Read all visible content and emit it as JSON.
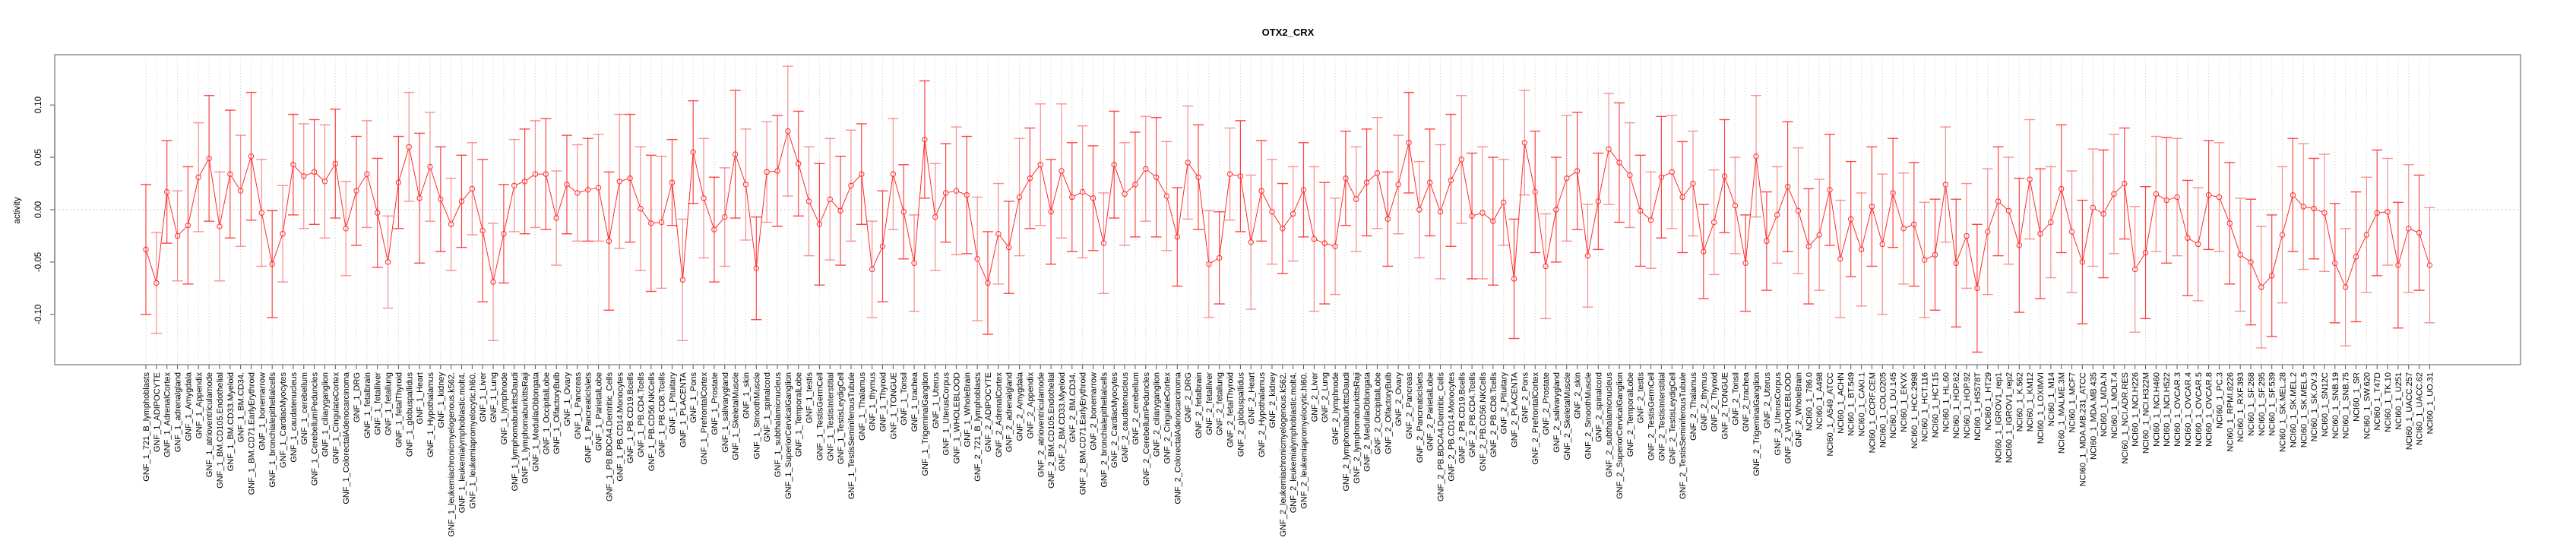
{
  "chart_data": {
    "type": "line",
    "title": "OTX2_CRX",
    "xlabel": "",
    "ylabel": "activity",
    "ylim": [
      -0.148,
      0.148
    ],
    "yticks": [
      -0.1,
      -0.05,
      0.0,
      0.05,
      0.1
    ],
    "ytick_labels": [
      "-0.10",
      "-0.05",
      "0.00",
      "0.05",
      "0.10"
    ],
    "grid": "vertical dotted at each sample; dotted reference line at 0",
    "legend": "none",
    "colors": {
      "series": "#ff2a2a",
      "error_bar": "#f77",
      "grid": "#cccccc",
      "frame": "#808080"
    },
    "categories": [
      "GNF_1_721_B_lymphoblasts",
      "GNF_1_ADIPOCYTE",
      "GNF_1_AdrenalCortex",
      "GNF_1_adrenalgland",
      "GNF_1_Amygdala",
      "GNF_1_Appendix",
      "GNF_1_atrioventricularnode",
      "GNF_1_BM.CD105.Endothelial",
      "GNF_1_BM.CD33.Myeloid",
      "GNF_1_BM.CD34.",
      "GNF_1_BM.CD71.EarlyErythroid",
      "GNF_1_bonemarrow",
      "GNF_1_bronchialepithelialcells",
      "GNF_1_CardiacMyocytes",
      "GNF_1_caudatenucleus",
      "GNF_1_cerebellum",
      "GNF_1_CerebellumPeduncles",
      "GNF_1_ciliaryganglion",
      "GNF_1_CingulateCortex",
      "GNF_1_ColorectalAdenocarcinoma",
      "GNF_1_DRG",
      "GNF_1_fetalbrain",
      "GNF_1_fetalliver",
      "GNF_1_fetallung",
      "GNF_1_fetalThyroid",
      "GNF_1_globuspallidus",
      "GNF_1_Heart",
      "GNF_1_Hypothalamus",
      "GNF_1_kidney",
      "GNF_1_leukemiachronicmyelogenous.k562.",
      "GNF_1_leukemialymphoblastic.molt4.",
      "GNF_1_leukemiapromyelocytic.hl60.",
      "GNF_1_Liver",
      "GNF_1_Lung",
      "GNF_1_lymphnode",
      "GNF_1_lymphomaburkittsDaudi",
      "GNF_1_lymphomaburkittsRaji",
      "GNF_1_MedullaOblongata",
      "GNF_1_OccipitalLobe",
      "GNF_1_OlfactoryBulb",
      "GNF_1_Ovary",
      "GNF_1_Pancreas",
      "GNF_1_PancreaticIslets",
      "GNF_1_ParietalLobe",
      "GNF_1_PB.BDCA4.Dentritic_Cells",
      "GNF_1_PB.CD14.Monocytes",
      "GNF_1_PB.CD19.Bcells",
      "GNF_1_PB.CD4.Tcells",
      "GNF_1_PB.CD56.NKCells",
      "GNF_1_PB.CD8.Tcells",
      "GNF_1_Pituitary",
      "GNF_1_PLACENTA",
      "GNF_1_Pons",
      "GNF_1_PrefrontalCortex",
      "GNF_1_Prostate",
      "GNF_1_salivarygland",
      "GNF_1_SkeletalMuscle",
      "GNF_1_skin",
      "GNF_1_SmoothMuscle",
      "GNF_1_spinalcord",
      "GNF_1_subthalamicnucleus",
      "GNF_1_SuperiorCervicalGanglion",
      "GNF_1_TemporalLobe",
      "GNF_1_testis",
      "GNF_1_TestisGermCell",
      "GNF_1_TestisInterstitial",
      "GNF_1_TestisLeydigCell",
      "GNF_1_TestisSeminiferousTubule",
      "GNF_1_Thalamus",
      "GNF_1_thymus",
      "GNF_1_Thyroid",
      "GNF_1_TONGUE",
      "GNF_1_Tonsil",
      "GNF_1_trachea",
      "GNF_1_TrigeminalGanglion",
      "GNF_1_Uterus",
      "GNF_1_UterusCorpus",
      "GNF_1_WHOLEBLOOD",
      "GNF_1_WholeBrain",
      "GNF_2_721_B_lymphoblasts",
      "GNF_2_ADIPOCYTE",
      "GNF_2_AdrenalCortex",
      "GNF_2_adrenalgland",
      "GNF_2_Amygdala",
      "GNF_2_Appendix",
      "GNF_2_atrioventricularnode",
      "GNF_2_BM.CD105.Endothelial",
      "GNF_2_BM.CD33.Myeloid",
      "GNF_2_BM.CD34.",
      "GNF_2_BM.CD71.EarlyErythroid",
      "GNF_2_bonemarrow",
      "GNF_2_bronchialepithelialcells",
      "GNF_2_CardiacMyocytes",
      "GNF_2_caudatenucleus",
      "GNF_2_cerebellum",
      "GNF_2_CerebellumPeduncles",
      "GNF_2_ciliaryganglion",
      "GNF_2_CingulateCortex",
      "GNF_2_ColorectalAdenocarcinoma",
      "GNF_2_DRG",
      "GNF_2_fetalbrain",
      "GNF_2_fetalliver",
      "GNF_2_fetallung",
      "GNF_2_fetalThyroid",
      "GNF_2_globuspallidus",
      "GNF_2_Heart",
      "GNF_2_Hypothalamus",
      "GNF_2_kidney",
      "GNF_2_leukemiachronicmyelogenous.k562.",
      "GNF_2_leukemialymphoblastic.molt4.",
      "GNF_2_leukemiapromyelocytic.hl60.",
      "GNF_2_Liver",
      "GNF_2_Lung",
      "GNF_2_lymphnode",
      "GNF_2_lymphomaburkittsDaudi",
      "GNF_2_lymphomaburkittsRaji",
      "GNF_2_MedullaOblongata",
      "GNF_2_OccipitalLobe",
      "GNF_2_OlfactoryBulb",
      "GNF_2_Ovary",
      "GNF_2_Pancreas",
      "GNF_2_PancreaticIslets",
      "GNF_2_ParietalLobe",
      "GNF_2_PB.BDCA4.Dentritic_Cells",
      "GNF_2_PB.CD14.Monocytes",
      "GNF_2_PB.CD19.Bcells",
      "GNF_2_PB.CD4.Tcells",
      "GNF_2_PB.CD56.NKCells",
      "GNF_2_PB.CD8.Tcells",
      "GNF_2_Pituitary",
      "GNF_2_PLACENTA",
      "GNF_2_Pons",
      "GNF_2_PrefrontalCortex",
      "GNF_2_Prostate",
      "GNF_2_salivarygland",
      "GNF_2_SkeletalMuscle",
      "GNF_2_skin",
      "GNF_2_SmoothMuscle",
      "GNF_2_spinalcord",
      "GNF_2_subthalamicnucleus",
      "GNF_2_SuperiorCervicalGanglion",
      "GNF_2_TemporalLobe",
      "GNF_2_testis",
      "GNF_2_TestisGermCell",
      "GNF_2_TestisInterstitial",
      "GNF_2_TestisLeydigCell",
      "GNF_2_TestisSeminiferousTubule",
      "GNF_2_Thalamus",
      "GNF_2_thymus",
      "GNF_2_Thyroid",
      "GNF_2_TONGUE",
      "GNF_2_Tonsil",
      "GNF_2_trachea",
      "GNF_2_TrigeminalGanglion",
      "GNF_2_Uterus",
      "GNF_2_UterusCorpus",
      "GNF_2_WHOLEBLOOD",
      "GNF_2_WholeBrain",
      "NCI60_1_786.0",
      "NCI60_1_A498",
      "NCI60_1_A549_ATCC",
      "NCI60_1_ACHN",
      "NCI60_1_BT.549",
      "NCI60_1_CAKI.1",
      "NCI60_1_CCRF.CEM",
      "NCI60_1_COLO205",
      "NCI60_1_DU.145",
      "NCI60_1_EKVX",
      "NCI60_1_HCC.2998",
      "NCI60_1_HCT.116",
      "NCI60_1_HCT.15",
      "NCI60_1_HL.60",
      "NCI60_1_HOP.62",
      "NCI60_1_HOP.92",
      "NCI60_1_HS578T",
      "NCI60_1_HT29",
      "NCI60_1_IGROV1_rep1",
      "NCI60_1_IGROV1_rep2",
      "NCI60_1_K.562",
      "NCI60_1_KM12",
      "NCI60_1_LOXIMVI",
      "NCI60_1_M14",
      "NCI60_1_MALME.3M",
      "NCI60_1_MCF7",
      "NCI60_1_MDA.MB.231_ATCC",
      "NCI60_1_MDA.MB.435",
      "NCI60_1_MDA.N",
      "NCI60_1_MOLT.4",
      "NCI60_1_NCI.ADR.RES",
      "NCI60_1_NCI.H226",
      "NCI60_1_NCI.H322M",
      "NCI60_1_NCI.H460",
      "NCI60_1_NCI.H522",
      "NCI60_1_OVCAR.3",
      "NCI60_1_OVCAR.4",
      "NCI60_1_OVCAR.5",
      "NCI60_1_OVCAR.8",
      "NCI60_1_PC.3",
      "NCI60_1_RPMI.8226",
      "NCI60_1_RXF.393",
      "NCI60_1_SF.268",
      "NCI60_1_SF.295",
      "NCI60_1_SF.539",
      "NCI60_1_SK.MEL.28",
      "NCI60_1_SK.MEL.2",
      "NCI60_1_SK.MEL.5",
      "NCI60_1_SK.OV.3",
      "NCI60_1_SN12C",
      "NCI60_1_SNB.19",
      "NCI60_1_SNB.75",
      "NCI60_1_SR",
      "NCI60_1_SW.620",
      "NCI60_1_T47D",
      "NCI60_1_TK.10",
      "NCI60_1_U251",
      "NCI60_1_UACC.257",
      "NCI60_1_UACC.62",
      "NCI60_1_UO.31"
    ],
    "series": [
      {
        "name": "activity",
        "values": [
          -0.038,
          -0.07,
          0.017,
          -0.025,
          -0.015,
          0.031,
          0.049,
          -0.016,
          0.034,
          0.018,
          0.051,
          -0.003,
          -0.052,
          -0.023,
          0.043,
          0.032,
          0.036,
          0.027,
          0.044,
          -0.018,
          0.018,
          0.034,
          -0.003,
          -0.05,
          0.026,
          0.06,
          0.011,
          0.041,
          0.01,
          -0.014,
          0.008,
          0.02,
          -0.02,
          -0.069,
          -0.023,
          0.023,
          0.027,
          0.034,
          0.034,
          -0.008,
          0.024,
          0.016,
          0.019,
          0.021,
          -0.03,
          0.027,
          0.03,
          0.001,
          -0.013,
          -0.012,
          0.026,
          -0.067,
          0.055,
          0.011,
          -0.019,
          -0.007,
          0.053,
          0.024,
          -0.056,
          0.036,
          0.037,
          0.075,
          0.044,
          0.008,
          -0.014,
          0.01,
          -0.001,
          0.023,
          0.034,
          -0.057,
          -0.035,
          0.034,
          -0.002,
          -0.051,
          0.067,
          -0.007,
          0.016,
          0.018,
          0.014,
          -0.047,
          -0.07,
          -0.023,
          -0.036,
          0.012,
          0.03,
          0.043,
          -0.002,
          0.037,
          0.012,
          0.017,
          0.011,
          -0.032,
          0.043,
          0.015,
          0.024,
          0.039,
          0.031,
          0.013,
          -0.026,
          0.045,
          0.031,
          -0.052,
          -0.046,
          0.034,
          0.032,
          -0.031,
          0.018,
          -0.002,
          -0.018,
          -0.004,
          0.019,
          -0.028,
          -0.032,
          -0.035,
          0.03,
          0.01,
          0.026,
          0.035,
          -0.009,
          0.024,
          0.064,
          0.0,
          0.026,
          -0.002,
          0.028,
          0.048,
          -0.006,
          -0.003,
          -0.011,
          0.007,
          -0.066,
          0.064,
          0.017,
          -0.054,
          0.0,
          0.03,
          0.037,
          -0.044,
          0.008,
          0.058,
          0.045,
          0.033,
          -0.001,
          -0.01,
          0.031,
          0.036,
          0.012,
          0.025,
          -0.04,
          -0.012,
          0.032,
          0.004,
          -0.051,
          0.051,
          -0.03,
          -0.005,
          0.022,
          -0.001,
          -0.035,
          -0.024,
          0.019,
          -0.047,
          -0.009,
          -0.038,
          0.003,
          -0.033,
          0.016,
          -0.018,
          -0.014,
          -0.048,
          -0.043,
          0.024,
          -0.051,
          -0.025,
          -0.075,
          -0.021,
          0.008,
          -0.001,
          -0.034,
          0.029,
          -0.023,
          -0.012,
          0.02,
          -0.021,
          -0.05,
          0.002,
          -0.004,
          0.015,
          0.025,
          -0.057,
          -0.041,
          0.015,
          0.009,
          0.012,
          -0.027,
          -0.033,
          0.014,
          0.012,
          -0.013,
          -0.043,
          -0.05,
          -0.074,
          -0.063,
          -0.024,
          0.014,
          0.003,
          0.001,
          -0.003,
          -0.051,
          -0.074,
          -0.045,
          -0.024,
          -0.003,
          -0.002,
          -0.053,
          -0.018,
          -0.022,
          -0.053
        ],
        "error": [
          0.062,
          0.048,
          0.049,
          0.043,
          0.056,
          0.052,
          0.06,
          0.052,
          0.061,
          0.053,
          0.061,
          0.051,
          0.051,
          0.046,
          0.048,
          0.05,
          0.05,
          0.054,
          0.052,
          0.045,
          0.052,
          0.051,
          0.052,
          0.044,
          0.044,
          0.052,
          0.062,
          0.052,
          0.05,
          0.044,
          0.044,
          0.044,
          0.068,
          0.056,
          0.047,
          0.044,
          0.05,
          0.051,
          0.053,
          0.045,
          0.047,
          0.046,
          0.049,
          0.051,
          0.066,
          0.064,
          0.061,
          0.059,
          0.065,
          0.063,
          0.041,
          0.058,
          0.049,
          0.057,
          0.05,
          0.047,
          0.061,
          0.053,
          0.049,
          0.048,
          0.053,
          0.062,
          0.05,
          0.052,
          0.058,
          0.058,
          0.052,
          0.053,
          0.048,
          0.046,
          0.053,
          0.053,
          0.045,
          0.046,
          0.056,
          0.051,
          0.047,
          0.061,
          0.056,
          0.059,
          0.049,
          0.048,
          0.044,
          0.056,
          0.048,
          0.058,
          0.05,
          0.064,
          0.052,
          0.063,
          0.05,
          0.048,
          0.051,
          0.049,
          0.05,
          0.05,
          0.057,
          0.052,
          0.047,
          0.054,
          0.05,
          0.051,
          0.044,
          0.044,
          0.053,
          0.064,
          0.048,
          0.05,
          0.043,
          0.045,
          0.045,
          0.069,
          0.058,
          0.046,
          0.045,
          0.05,
          0.051,
          0.053,
          0.045,
          0.047,
          0.048,
          0.046,
          0.051,
          0.064,
          0.063,
          0.061,
          0.06,
          0.063,
          0.061,
          0.041,
          0.057,
          0.05,
          0.058,
          0.05,
          0.05,
          0.06,
          0.056,
          0.049,
          0.046,
          0.053,
          0.057,
          0.05,
          0.053,
          0.046,
          0.058,
          0.054,
          0.053,
          0.05,
          0.045,
          0.05,
          0.054,
          0.046,
          0.046,
          0.058,
          0.047,
          0.046,
          0.062,
          0.06,
          0.055,
          0.053,
          0.053,
          0.056,
          0.055,
          0.054,
          0.057,
          0.067,
          0.052,
          0.053,
          0.059,
          0.055,
          0.053,
          0.055,
          0.061,
          0.05,
          0.061,
          0.06,
          0.052,
          0.051,
          0.064,
          0.057,
          0.062,
          0.053,
          0.061,
          0.058,
          0.059,
          0.056,
          0.061,
          0.057,
          0.053,
          0.06,
          0.063,
          0.055,
          0.06,
          0.056,
          0.055,
          0.054,
          0.052,
          0.052,
          0.058,
          0.054,
          0.06,
          0.058,
          0.058,
          0.065,
          0.054,
          0.06,
          0.048,
          0.056,
          0.057,
          0.056,
          0.062,
          0.055,
          0.06,
          0.051,
          0.06,
          0.061,
          0.055,
          0.055
        ]
      }
    ]
  }
}
